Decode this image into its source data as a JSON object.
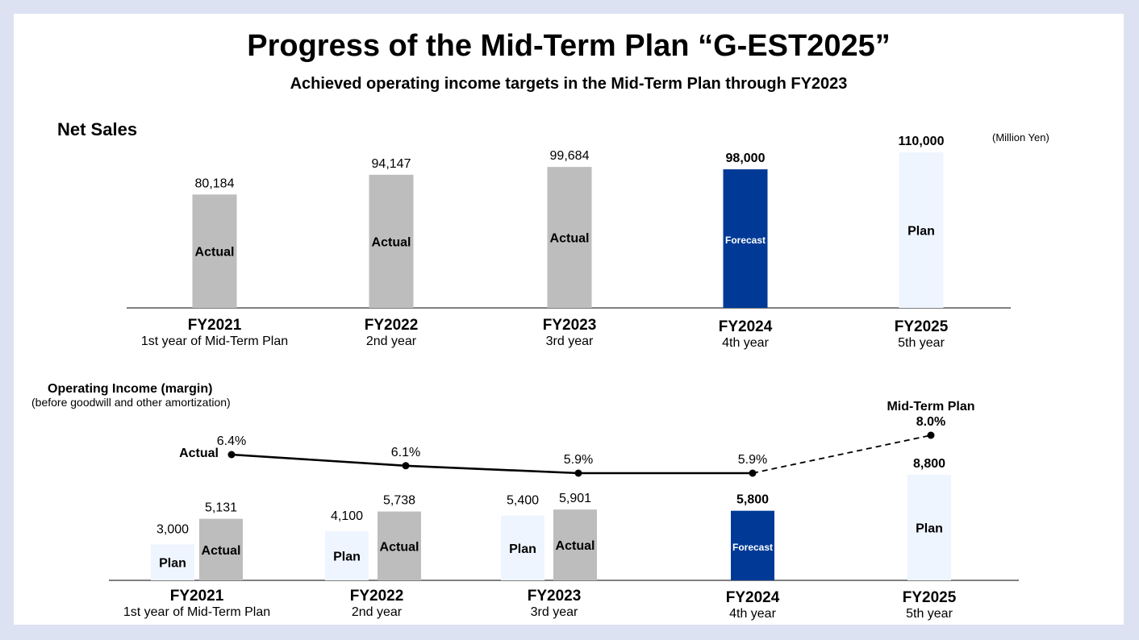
{
  "header": {
    "title": "Progress of the Mid-Term Plan “G-EST2025”",
    "subtitle": "Achieved operating income targets in the Mid-Term Plan through FY2023"
  },
  "colors": {
    "actual": "#bdbdbd",
    "forecast": "#003a96",
    "plan": "#eef5ff",
    "background": "#dde2f3"
  },
  "chart_data": [
    {
      "type": "bar",
      "title": "Net Sales",
      "unit": "(Million Yen)",
      "categories": [
        "FY2021",
        "FY2022",
        "FY2023",
        "FY2024",
        "FY2025"
      ],
      "category_sublabels": [
        "1st year of Mid-Term Plan",
        "2nd year",
        "3rd year",
        "4th year",
        "5th year"
      ],
      "values": [
        80184,
        94147,
        99684,
        98000,
        110000
      ],
      "value_labels": [
        "80,184",
        "94,147",
        "99,684",
        "98,000",
        "110,000"
      ],
      "bar_labels": [
        "Actual",
        "Actual",
        "Actual",
        "Forecast",
        "Plan"
      ],
      "bar_kinds": [
        "actual",
        "actual",
        "actual",
        "forecast",
        "plan"
      ],
      "ylim": [
        0,
        110000
      ]
    },
    {
      "type": "bar",
      "title": "Operating Income (margin)",
      "subtitle": "(before goodwill and other amortization)",
      "categories": [
        "FY2021",
        "FY2022",
        "FY2023",
        "FY2024",
        "FY2025"
      ],
      "category_sublabels": [
        "1st year of Mid-Term Plan",
        "2nd year",
        "3rd year",
        "4th year",
        "5th year"
      ],
      "series": [
        {
          "name": "Plan",
          "values": [
            3000,
            4100,
            5400,
            null,
            null
          ],
          "value_labels": [
            "3,000",
            "4,100",
            "5,400",
            "",
            ""
          ],
          "bar_labels": [
            "Plan",
            "Plan",
            "Plan",
            "",
            ""
          ]
        },
        {
          "name": "Actual",
          "values": [
            5131,
            5738,
            5901,
            5800,
            8800
          ],
          "value_labels": [
            "5,131",
            "5,738",
            "5,901",
            "5,800",
            "8,800"
          ],
          "bar_labels": [
            "Actual",
            "Actual",
            "Actual",
            "Forecast",
            "Plan"
          ],
          "bar_kinds": [
            "actual",
            "actual",
            "actual",
            "forecast",
            "plan"
          ]
        }
      ],
      "ylim": [
        0,
        8800
      ]
    },
    {
      "type": "line",
      "title": "",
      "line_label": "Actual",
      "categories": [
        "FY2021",
        "FY2022",
        "FY2023",
        "FY2024",
        "FY2025"
      ],
      "values": [
        6.4,
        6.1,
        5.9,
        5.9,
        8.0
      ],
      "value_labels": [
        "6.4%",
        "6.1%",
        "5.9%",
        "5.9%",
        "8.0%"
      ],
      "endpoint_label": "Mid-Term Plan",
      "dashed_from_index": 3
    }
  ]
}
